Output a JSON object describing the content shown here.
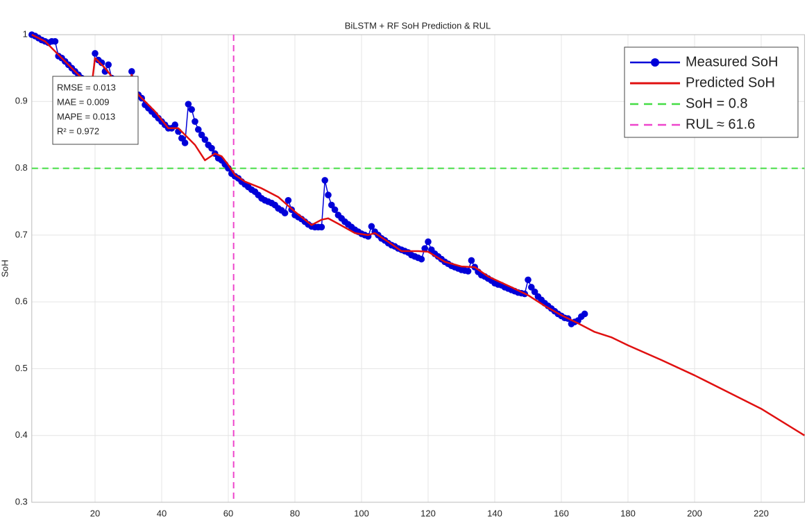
{
  "chart_data": {
    "type": "line",
    "title": "BiLSTM + RF SoH Prediction & RUL",
    "y_label": "SoH",
    "xlim": [
      1,
      233
    ],
    "ylim": [
      0.3,
      1
    ],
    "xticks": [
      20,
      40,
      60,
      80,
      100,
      120,
      140,
      160,
      180,
      200,
      220
    ],
    "yticks": [
      0.3,
      0.4,
      0.5,
      0.6,
      0.7,
      0.8,
      0.9,
      1
    ],
    "grid": true,
    "legend": "upper right",
    "series": [
      {
        "name": "Measured SoH",
        "color": "#0000d8",
        "markers": true,
        "x": [
          1,
          2,
          3,
          4,
          5,
          6,
          7,
          8,
          9,
          10,
          11,
          12,
          13,
          14,
          15,
          16,
          17,
          18,
          19,
          20,
          21,
          22,
          23,
          24,
          25,
          26,
          27,
          28,
          29,
          30,
          31,
          32,
          33,
          34,
          35,
          36,
          37,
          38,
          39,
          40,
          41,
          42,
          43,
          44,
          45,
          46,
          47,
          48,
          49,
          50,
          51,
          52,
          53,
          54,
          55,
          56,
          57,
          58,
          59,
          60,
          61,
          62,
          63,
          64,
          65,
          66,
          67,
          68,
          69,
          70,
          71,
          72,
          73,
          74,
          75,
          76,
          77,
          78,
          79,
          80,
          81,
          82,
          83,
          84,
          85,
          86,
          87,
          88,
          89,
          90,
          91,
          92,
          93,
          94,
          95,
          96,
          97,
          98,
          99,
          100,
          101,
          102,
          103,
          104,
          105,
          106,
          107,
          108,
          109,
          110,
          111,
          112,
          113,
          114,
          115,
          116,
          117,
          118,
          119,
          120,
          121,
          122,
          123,
          124,
          125,
          126,
          127,
          128,
          129,
          130,
          131,
          132,
          133,
          134,
          135,
          136,
          137,
          138,
          139,
          140,
          141,
          142,
          143,
          144,
          145,
          146,
          147,
          148,
          149,
          150,
          151,
          152,
          153,
          154,
          155,
          156,
          157,
          158,
          159,
          160,
          161,
          162,
          163,
          164,
          165,
          166,
          167
        ],
        "values": [
          1.0,
          0.998,
          0.995,
          0.992,
          0.99,
          0.988,
          0.99,
          0.99,
          0.968,
          0.965,
          0.96,
          0.955,
          0.95,
          0.945,
          0.94,
          0.935,
          0.93,
          0.925,
          0.92,
          0.972,
          0.962,
          0.958,
          0.945,
          0.955,
          0.935,
          0.93,
          0.925,
          0.92,
          0.915,
          0.91,
          0.945,
          0.92,
          0.91,
          0.905,
          0.895,
          0.89,
          0.885,
          0.88,
          0.875,
          0.87,
          0.865,
          0.86,
          0.86,
          0.865,
          0.855,
          0.845,
          0.838,
          0.896,
          0.888,
          0.87,
          0.858,
          0.85,
          0.843,
          0.835,
          0.83,
          0.822,
          0.815,
          0.812,
          0.806,
          0.8,
          0.792,
          0.788,
          0.785,
          0.78,
          0.776,
          0.772,
          0.768,
          0.765,
          0.76,
          0.755,
          0.752,
          0.75,
          0.748,
          0.745,
          0.74,
          0.737,
          0.733,
          0.752,
          0.738,
          0.73,
          0.727,
          0.724,
          0.72,
          0.716,
          0.713,
          0.712,
          0.712,
          0.712,
          0.782,
          0.76,
          0.745,
          0.738,
          0.73,
          0.725,
          0.72,
          0.716,
          0.712,
          0.708,
          0.705,
          0.702,
          0.7,
          0.698,
          0.713,
          0.705,
          0.7,
          0.695,
          0.692,
          0.688,
          0.685,
          0.683,
          0.68,
          0.678,
          0.676,
          0.674,
          0.67,
          0.668,
          0.666,
          0.664,
          0.68,
          0.69,
          0.678,
          0.672,
          0.668,
          0.664,
          0.66,
          0.657,
          0.654,
          0.652,
          0.65,
          0.648,
          0.647,
          0.646,
          0.662,
          0.652,
          0.645,
          0.64,
          0.638,
          0.635,
          0.632,
          0.628,
          0.626,
          0.625,
          0.622,
          0.62,
          0.618,
          0.616,
          0.614,
          0.613,
          0.612,
          0.633,
          0.622,
          0.615,
          0.608,
          0.603,
          0.598,
          0.594,
          0.59,
          0.586,
          0.582,
          0.579,
          0.576,
          0.575,
          0.567,
          0.57,
          0.572,
          0.578,
          0.582
        ]
      },
      {
        "name": "Predicted SoH",
        "color": "#e01010",
        "markers": false,
        "x": [
          1,
          5,
          10,
          15,
          19,
          20,
          23,
          27,
          30,
          31,
          33,
          38,
          42,
          45,
          50,
          53,
          56,
          58,
          60,
          62,
          65,
          70,
          75,
          80,
          85,
          88,
          90,
          93,
          98,
          102,
          104,
          108,
          112,
          117,
          120,
          125,
          130,
          134,
          138,
          145,
          150,
          155,
          160,
          165,
          170,
          175,
          180,
          190,
          200,
          210,
          220,
          233
        ],
        "values": [
          1.0,
          0.99,
          0.965,
          0.94,
          0.925,
          0.965,
          0.95,
          0.925,
          0.915,
          0.94,
          0.91,
          0.885,
          0.86,
          0.86,
          0.835,
          0.812,
          0.822,
          0.818,
          0.805,
          0.79,
          0.78,
          0.77,
          0.757,
          0.735,
          0.715,
          0.723,
          0.725,
          0.717,
          0.703,
          0.7,
          0.703,
          0.69,
          0.676,
          0.676,
          0.675,
          0.66,
          0.653,
          0.652,
          0.638,
          0.622,
          0.61,
          0.594,
          0.58,
          0.568,
          0.555,
          0.547,
          0.535,
          0.513,
          0.49,
          0.465,
          0.44,
          0.4
        ]
      }
    ],
    "reference_lines": [
      {
        "label": "SoH = 0.8",
        "axis": "y",
        "value": 0.8,
        "color": "#44dd44"
      },
      {
        "label": "RUL ≈ 61.6",
        "axis": "x",
        "value": 61.6,
        "color": "#ee44cc"
      }
    ],
    "metrics": [
      "RMSE = 0.013",
      "MAE  = 0.009",
      "MAPE = 0.013",
      "R² = 0.972"
    ]
  }
}
